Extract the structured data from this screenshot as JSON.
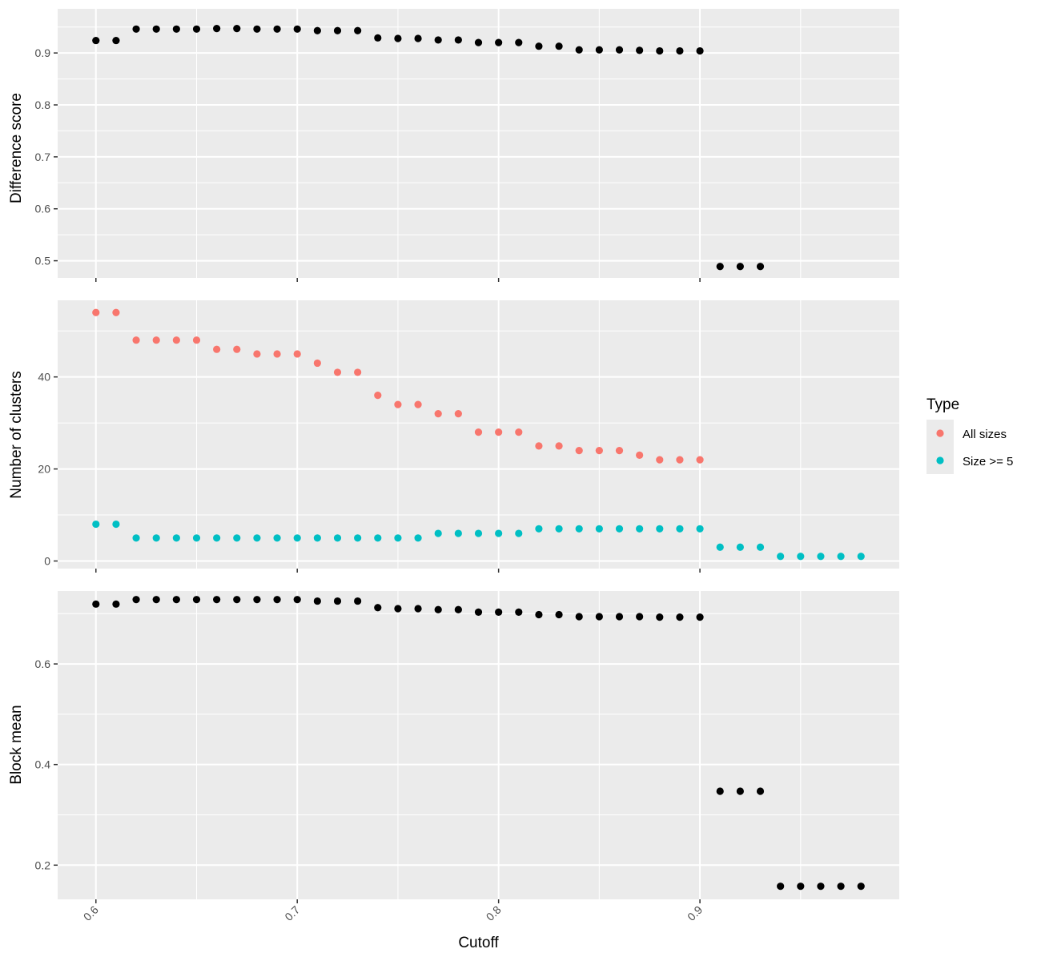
{
  "chart_data": [
    {
      "type": "scatter",
      "ylabel": "Difference score",
      "ylim": [
        0.467,
        0.985
      ],
      "yticks": [
        0.5,
        0.6,
        0.7,
        0.8,
        0.9
      ],
      "series": [
        {
          "name": "",
          "color": "#000000",
          "x": [
            0.6,
            0.61,
            0.62,
            0.63,
            0.64,
            0.65,
            0.66,
            0.67,
            0.68,
            0.69,
            0.7,
            0.71,
            0.72,
            0.73,
            0.74,
            0.75,
            0.76,
            0.77,
            0.78,
            0.79,
            0.8,
            0.81,
            0.82,
            0.83,
            0.84,
            0.85,
            0.86,
            0.87,
            0.88,
            0.89,
            0.9,
            0.91,
            0.92,
            0.93
          ],
          "y": [
            0.924,
            0.924,
            0.946,
            0.946,
            0.946,
            0.946,
            0.947,
            0.947,
            0.946,
            0.946,
            0.946,
            0.943,
            0.943,
            0.943,
            0.929,
            0.928,
            0.928,
            0.925,
            0.925,
            0.92,
            0.92,
            0.92,
            0.913,
            0.913,
            0.906,
            0.906,
            0.906,
            0.905,
            0.904,
            0.904,
            0.904,
            0.489,
            0.489,
            0.489
          ]
        }
      ]
    },
    {
      "type": "scatter",
      "ylabel": "Number of clusters",
      "ylim": [
        -1.65,
        56.65
      ],
      "yticks": [
        0,
        20,
        40
      ],
      "series": [
        {
          "name": "All sizes",
          "color": "#f8766d",
          "x": [
            0.6,
            0.61,
            0.62,
            0.63,
            0.64,
            0.65,
            0.66,
            0.67,
            0.68,
            0.69,
            0.7,
            0.71,
            0.72,
            0.73,
            0.74,
            0.75,
            0.76,
            0.77,
            0.78,
            0.79,
            0.8,
            0.81,
            0.82,
            0.83,
            0.84,
            0.85,
            0.86,
            0.87,
            0.88,
            0.89,
            0.9
          ],
          "y": [
            54,
            54,
            48,
            48,
            48,
            48,
            46,
            46,
            45,
            45,
            45,
            43,
            41,
            41,
            36,
            34,
            34,
            32,
            32,
            28,
            28,
            28,
            25,
            25,
            24,
            24,
            24,
            23,
            22,
            22,
            22
          ]
        },
        {
          "name": "Size >= 5",
          "color": "#00bfc4",
          "x": [
            0.6,
            0.61,
            0.62,
            0.63,
            0.64,
            0.65,
            0.66,
            0.67,
            0.68,
            0.69,
            0.7,
            0.71,
            0.72,
            0.73,
            0.74,
            0.75,
            0.76,
            0.77,
            0.78,
            0.79,
            0.8,
            0.81,
            0.82,
            0.83,
            0.84,
            0.85,
            0.86,
            0.87,
            0.88,
            0.89,
            0.9,
            0.91,
            0.92,
            0.93,
            0.94,
            0.95,
            0.96,
            0.97,
            0.98
          ],
          "y": [
            8,
            8,
            5,
            5,
            5,
            5,
            5,
            5,
            5,
            5,
            5,
            5,
            5,
            5,
            5,
            5,
            5,
            6,
            6,
            6,
            6,
            6,
            7,
            7,
            7,
            7,
            7,
            7,
            7,
            7,
            7,
            3,
            3,
            3,
            1,
            1,
            1,
            1,
            1
          ]
        }
      ]
    },
    {
      "type": "scatter",
      "ylabel": "Block mean",
      "ylim": [
        0.132,
        0.745
      ],
      "yticks": [
        0.2,
        0.4,
        0.6
      ],
      "series": [
        {
          "name": "",
          "color": "#000000",
          "x": [
            0.6,
            0.61,
            0.62,
            0.63,
            0.64,
            0.65,
            0.66,
            0.67,
            0.68,
            0.69,
            0.7,
            0.71,
            0.72,
            0.73,
            0.74,
            0.75,
            0.76,
            0.77,
            0.78,
            0.79,
            0.8,
            0.81,
            0.82,
            0.83,
            0.84,
            0.85,
            0.86,
            0.87,
            0.88,
            0.89,
            0.9,
            0.91,
            0.92,
            0.93,
            0.94,
            0.95,
            0.96,
            0.97,
            0.98
          ],
          "y": [
            0.719,
            0.719,
            0.728,
            0.728,
            0.728,
            0.728,
            0.728,
            0.728,
            0.728,
            0.728,
            0.728,
            0.725,
            0.725,
            0.725,
            0.712,
            0.71,
            0.71,
            0.708,
            0.708,
            0.703,
            0.703,
            0.703,
            0.698,
            0.698,
            0.694,
            0.694,
            0.694,
            0.694,
            0.693,
            0.693,
            0.693,
            0.347,
            0.347,
            0.347,
            0.158,
            0.158,
            0.158,
            0.158,
            0.158
          ]
        }
      ]
    }
  ],
  "x_axis": {
    "label": "Cutoff",
    "xlim": [
      0.581,
      0.999
    ],
    "ticks": [
      0.6,
      0.7,
      0.8,
      0.9
    ],
    "tick_labels": [
      "0.6",
      "0.7",
      "0.8",
      "0.9"
    ]
  },
  "legend": {
    "title": "Type",
    "position": "right",
    "items": [
      {
        "label": "All sizes",
        "color": "#f8766d"
      },
      {
        "label": "Size >= 5",
        "color": "#00bfc4"
      }
    ]
  }
}
